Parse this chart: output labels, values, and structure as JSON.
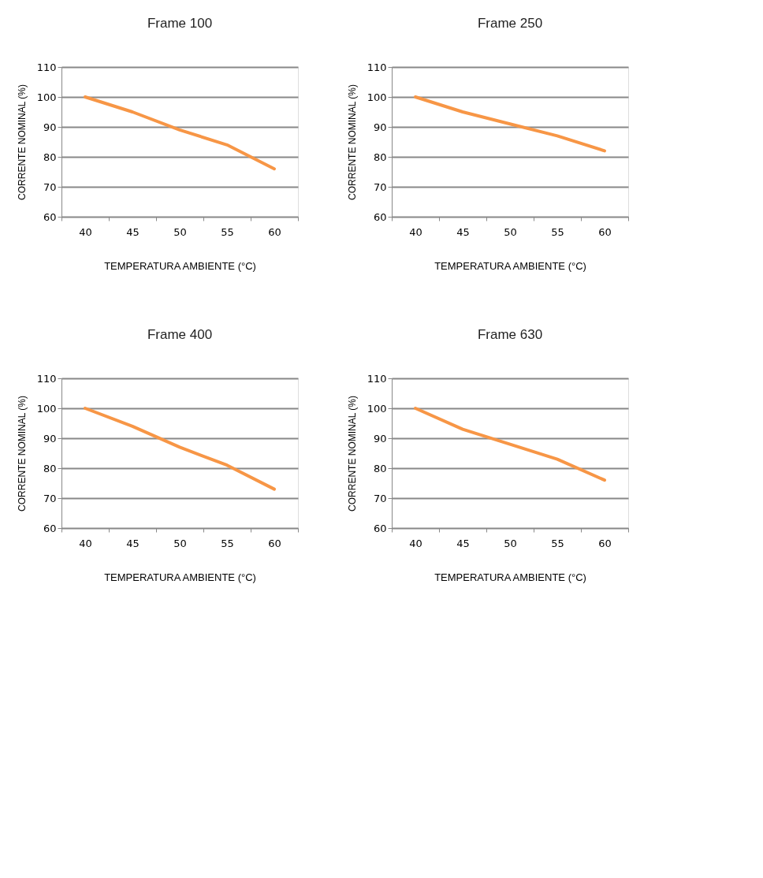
{
  "chart_data": [
    {
      "type": "line",
      "title": "Frame 100",
      "xlabel": "TEMPERATURA AMBIENTE (°C)",
      "ylabel": "CORRENTE NOMINAL (%)",
      "categories": [
        "40",
        "45",
        "50",
        "55",
        "60"
      ],
      "series": [
        {
          "color": "#f79646",
          "values": [
            100,
            95,
            89,
            84,
            76
          ]
        }
      ],
      "ylim": [
        60,
        110
      ],
      "yticks": [
        60,
        70,
        80,
        90,
        100,
        110
      ],
      "grid": "y",
      "marker": "none",
      "line_style": "solid"
    },
    {
      "type": "line",
      "title": "Frame 250",
      "xlabel": "TEMPERATURA AMBIENTE (°C)",
      "ylabel": "CORRENTE NOMINAL (%)",
      "categories": [
        "40",
        "45",
        "50",
        "55",
        "60"
      ],
      "series": [
        {
          "color": "#f79646",
          "values": [
            100,
            95,
            91,
            87,
            82
          ]
        }
      ],
      "ylim": [
        60,
        110
      ],
      "yticks": [
        60,
        70,
        80,
        90,
        100,
        110
      ],
      "grid": "y",
      "marker": "none",
      "line_style": "solid"
    },
    {
      "type": "line",
      "title": "Frame 400",
      "xlabel": "TEMPERATURA AMBIENTE (°C)",
      "ylabel": "CORRENTE NOMINAL (%)",
      "categories": [
        "40",
        "45",
        "50",
        "55",
        "60"
      ],
      "series": [
        {
          "color": "#f79646",
          "values": [
            100,
            94,
            87,
            81,
            73
          ]
        }
      ],
      "ylim": [
        60,
        110
      ],
      "yticks": [
        60,
        70,
        80,
        90,
        100,
        110
      ],
      "grid": "y",
      "marker": "none",
      "line_style": "solid"
    },
    {
      "type": "line",
      "title": "Frame 630",
      "xlabel": "TEMPERATURA AMBIENTE (°C)",
      "ylabel": "CORRENTE NOMINAL (%)",
      "categories": [
        "40",
        "45",
        "50",
        "55",
        "60"
      ],
      "series": [
        {
          "color": "#f79646",
          "values": [
            100,
            93,
            88,
            83,
            76
          ]
        }
      ],
      "ylim": [
        60,
        110
      ],
      "yticks": [
        60,
        70,
        80,
        90,
        100,
        110
      ],
      "grid": "y",
      "marker": "none",
      "line_style": "solid"
    }
  ]
}
